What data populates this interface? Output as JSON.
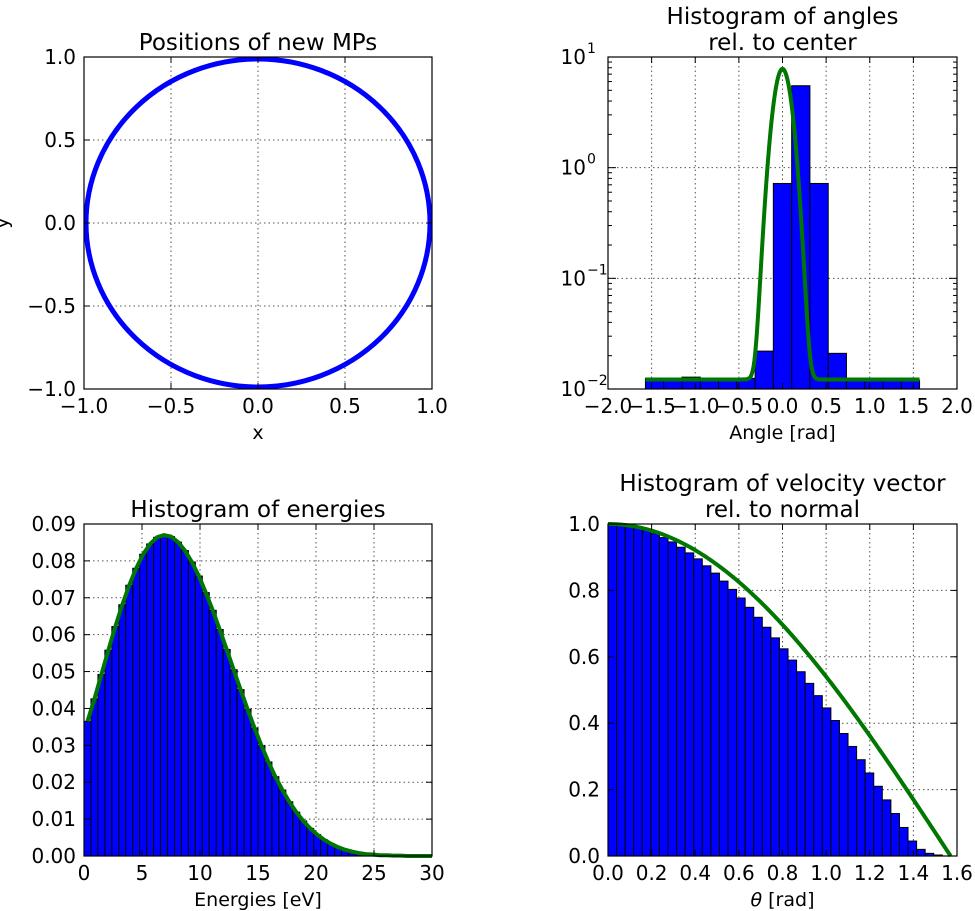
{
  "colors": {
    "bar": "#0000ff",
    "fit": "#007700",
    "circle": "#0000ff",
    "edge": "#000000",
    "grid": "#555555"
  },
  "chart_data": [
    {
      "type": "scatter",
      "title": "Positions of new MPs",
      "xlabel": "x",
      "ylabel": "y",
      "xlim": [
        -1.0,
        1.0
      ],
      "ylim": [
        -1.0,
        1.0
      ],
      "xticks": [
        "−1.0",
        "−0.5",
        "0.0",
        "0.5",
        "1.0"
      ],
      "yticks": [
        "−1.0",
        "−0.5",
        "0.0",
        "0.5",
        "1.0"
      ],
      "grid": true,
      "series": [
        {
          "shape": "points on unit circle",
          "radius": 1.0,
          "center": [
            0,
            0
          ]
        }
      ]
    },
    {
      "type": "bar",
      "title": "Histogram of angles\nrel. to center",
      "xlabel": "Angle [rad]",
      "ylabel": "",
      "xlim": [
        -2.0,
        2.0
      ],
      "ylim": [
        0.01,
        10
      ],
      "yscale": "log",
      "xticks": [
        "−2.0",
        "−1.5",
        "−1.0",
        "−0.5",
        "0.0",
        "0.5",
        "1.0",
        "1.5",
        "2.0"
      ],
      "yticks": [
        "10^-2",
        "10^-1",
        "10^0",
        "10^1"
      ],
      "grid": true,
      "bin_edges": [
        -1.571,
        -1.362,
        -1.152,
        -0.942,
        -0.733,
        -0.524,
        -0.314,
        -0.105,
        0.105,
        0.314,
        0.524,
        0.733,
        0.942,
        1.152,
        1.362,
        1.571
      ],
      "values": [
        0.0125,
        0.0122,
        0.0128,
        0.0122,
        0.012,
        0.0125,
        0.022,
        0.72,
        5.5,
        0.72,
        0.021,
        0.0125,
        0.012,
        0.0122,
        0.012
      ],
      "fit": {
        "type": "line",
        "peak": 7.8,
        "center": 0.0,
        "sigma": 0.085,
        "baseline": 0.0122,
        "x_range": [
          -1.571,
          1.571
        ]
      }
    },
    {
      "type": "bar",
      "title": "Histogram of energies",
      "xlabel": "Energies [eV]",
      "ylabel": "",
      "xlim": [
        0,
        30
      ],
      "ylim": [
        0,
        0.09
      ],
      "xticks": [
        "0",
        "5",
        "10",
        "15",
        "20",
        "25",
        "30"
      ],
      "yticks": [
        "0.00",
        "0.01",
        "0.02",
        "0.03",
        "0.04",
        "0.05",
        "0.06",
        "0.07",
        "0.08",
        "0.09"
      ],
      "grid": true,
      "bin_width": 0.6,
      "x_start": 0.0,
      "values": [
        0.0365,
        0.0426,
        0.0492,
        0.0558,
        0.0622,
        0.0681,
        0.0734,
        0.078,
        0.0818,
        0.0846,
        0.0864,
        0.087,
        0.0866,
        0.0851,
        0.0828,
        0.0797,
        0.0759,
        0.0714,
        0.0666,
        0.0614,
        0.056,
        0.0505,
        0.0451,
        0.0398,
        0.0347,
        0.0299,
        0.0255,
        0.0215,
        0.0179,
        0.0147,
        0.0119,
        0.0095,
        0.0075,
        0.0058,
        0.0044,
        0.0033,
        0.0024,
        0.0017,
        0.0012,
        0.0008,
        0.0005,
        0.0004,
        0.0002,
        0.0002,
        0.0001,
        0.0001,
        0.0,
        0.0,
        0.0,
        0.0
      ],
      "fit": {
        "type": "line",
        "x_range": [
          0.3,
          30
        ],
        "peak_x": 7.0,
        "peak_y": 0.087
      }
    },
    {
      "type": "bar",
      "title": "Histogram of velocity vector\nrel. to normal",
      "xlabel": "θ [rad]",
      "ylabel": "",
      "xlim": [
        0,
        1.6
      ],
      "ylim": [
        0,
        1.0
      ],
      "xticks": [
        "0.0",
        "0.2",
        "0.4",
        "0.6",
        "0.8",
        "1.0",
        "1.2",
        "1.4",
        "1.6"
      ],
      "yticks": [
        "0.0",
        "0.2",
        "0.4",
        "0.6",
        "0.8",
        "1.0"
      ],
      "grid": true,
      "bin_width": 0.0393,
      "x_start": 0.0,
      "x_end": 1.5708,
      "values": [
        1.0,
        0.998,
        0.994,
        0.989,
        0.981,
        0.971,
        0.959,
        0.946,
        0.93,
        0.913,
        0.895,
        0.874,
        0.852,
        0.828,
        0.803,
        0.777,
        0.749,
        0.719,
        0.689,
        0.657,
        0.624,
        0.59,
        0.555,
        0.52,
        0.483,
        0.446,
        0.408,
        0.369,
        0.33,
        0.29,
        0.25,
        0.21,
        0.169,
        0.128,
        0.086,
        0.045,
        0.02,
        0.008,
        0.003,
        0.0
      ],
      "fit": {
        "type": "line",
        "function": "cos(theta)",
        "x_range": [
          0,
          1.5708
        ]
      }
    }
  ]
}
